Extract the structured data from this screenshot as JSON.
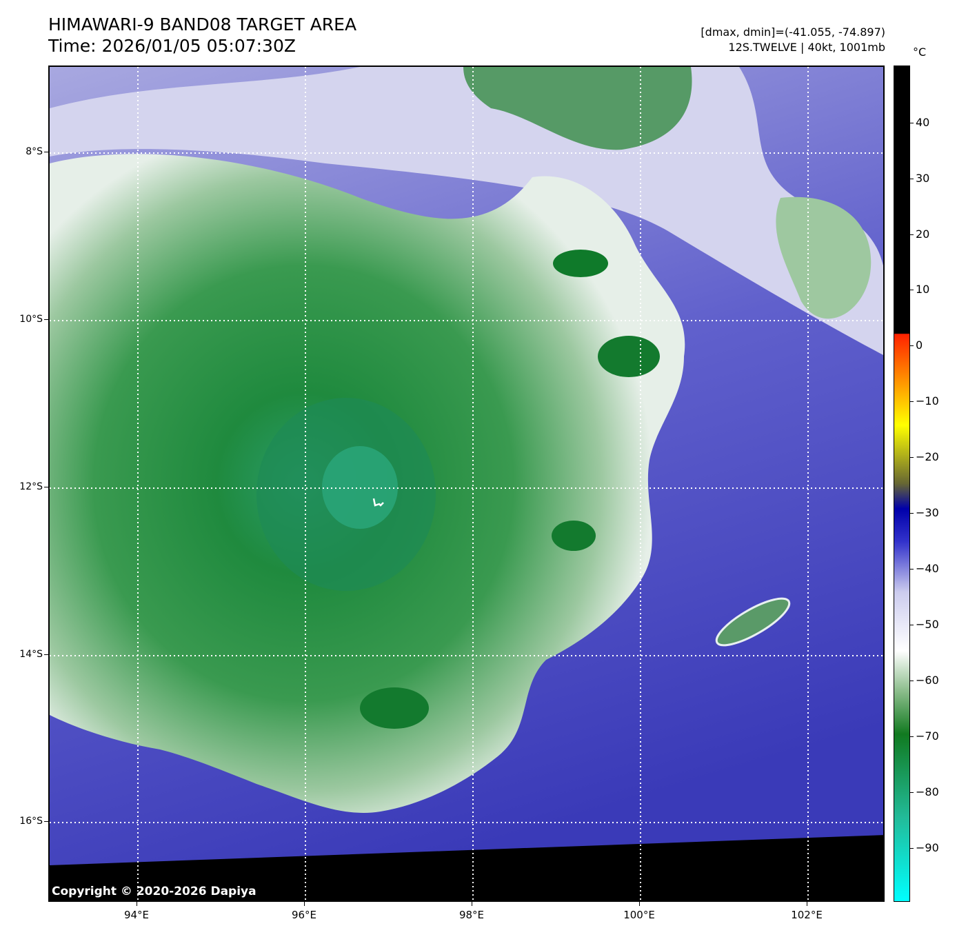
{
  "header": {
    "title": "HIMAWARI-9 BAND08 TARGET AREA",
    "time": "Time: 2026/01/05 05:07:30Z",
    "range": "[dmax, dmin]=(-41.055, -74.897)",
    "storm": "12S.TWELVE | 40kt, 1001mb"
  },
  "colorbar": {
    "unit": "°C",
    "labels": [
      "40",
      "30",
      "20",
      "10",
      "0",
      "−10",
      "−20",
      "−30",
      "−40",
      "−50",
      "−60",
      "−70",
      "−80",
      "−90"
    ],
    "colors": {
      "black_warm": "#000000",
      "red": "#ff2200",
      "orange": "#ff9900",
      "yellow": "#ffff00",
      "olive": "#666633",
      "navy": "#0000aa",
      "blue": "#3333cc",
      "lavender": "#ccccee",
      "white": "#ffffff",
      "light_green": "#88bb88",
      "green": "#117a20",
      "dark_green": "#0a7a2a",
      "teal": "#22bb99",
      "cyan": "#00ffff"
    }
  },
  "map": {
    "lat_labels": [
      "8°S",
      "10°S",
      "12°S",
      "14°S",
      "16°S"
    ],
    "lon_labels": [
      "94°E",
      "96°E",
      "98°E",
      "100°E",
      "102°E"
    ],
    "copyright": "Copyright © 2020-2026 Dapiya",
    "colors": {
      "sea": "#5858c8",
      "cloud_green": "#2a8a40",
      "cloud_core": "#2aa070",
      "cloud_edge": "#e8f0f0",
      "no_data": "#000000"
    }
  }
}
